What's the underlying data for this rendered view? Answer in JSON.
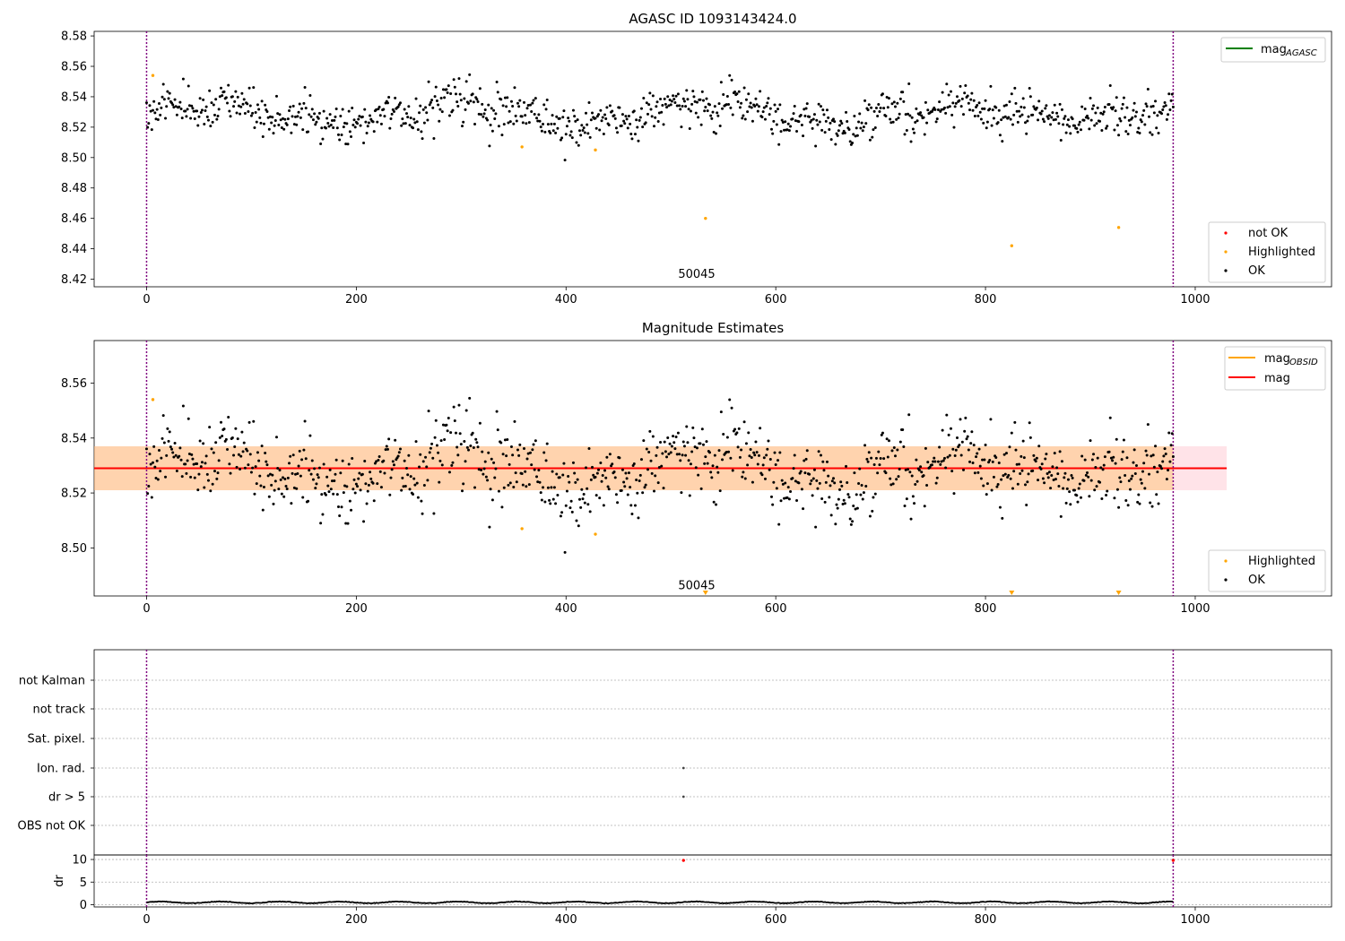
{
  "chart_data": [
    {
      "id": "top",
      "type": "scatter",
      "title": "AGASC ID 1093143424.0",
      "xlim": [
        -50,
        1130
      ],
      "ylim": [
        8.415,
        8.583
      ],
      "xticks": [
        0,
        200,
        400,
        600,
        800,
        1000
      ],
      "yticks": [
        8.42,
        8.44,
        8.46,
        8.48,
        8.5,
        8.52,
        8.54,
        8.56,
        8.58
      ],
      "vlines": [
        0,
        979
      ],
      "annotations": [
        {
          "text": "50045",
          "x": 487,
          "y": 8.421
        }
      ],
      "legend_lines": [
        {
          "label": "mag",
          "sub": "AGASC",
          "color": "#008000"
        }
      ],
      "legend_points": [
        {
          "label": "not OK",
          "color": "#ff0000"
        },
        {
          "label": "Highlighted",
          "color": "#ffa500"
        },
        {
          "label": "OK",
          "color": "#000000"
        }
      ],
      "series": [
        {
          "name": "OK",
          "color": "#000000",
          "points": "generated: 980 observations, mean 8.529, sd 0.007"
        },
        {
          "name": "Highlighted",
          "color": "#ffa500",
          "x": [
            6,
            358,
            428,
            533,
            825,
            927
          ],
          "y": [
            8.554,
            8.507,
            8.505,
            8.46,
            8.442,
            8.454
          ]
        }
      ]
    },
    {
      "id": "mid",
      "type": "scatter",
      "title": "Magnitude Estimates",
      "xlim": [
        -50,
        1130
      ],
      "ylim": [
        8.4825,
        8.5755
      ],
      "xticks": [
        0,
        200,
        400,
        600,
        800,
        1000
      ],
      "yticks": [
        8.5,
        8.52,
        8.54,
        8.56
      ],
      "vlines": [
        0,
        979
      ],
      "annotations": [
        {
          "text": "50045",
          "x": 487,
          "y": 8.4849
        }
      ],
      "bands": [
        {
          "label": "mag",
          "x": [
            -50,
            1030
          ],
          "y": [
            8.521,
            8.537
          ],
          "color": "#ffc0cb"
        },
        {
          "label": "mag OBSID",
          "x": [
            -50,
            979
          ],
          "y": [
            8.521,
            8.537
          ],
          "color": "#ffa500"
        }
      ],
      "hlines": [
        {
          "label": "mag",
          "sub": "OBSID",
          "value": 8.529,
          "x": [
            -50,
            979
          ],
          "color": "#ffa500"
        },
        {
          "label": "mag",
          "sub": "",
          "value": 8.529,
          "x": [
            -50,
            1030
          ],
          "color": "#ff0000"
        }
      ],
      "legend_points": [
        {
          "label": "Highlighted",
          "color": "#ffa500"
        },
        {
          "label": "OK",
          "color": "#000000"
        }
      ],
      "series": [
        {
          "name": "OK",
          "color": "#000000",
          "points": "same as top"
        },
        {
          "name": "Highlighted",
          "color": "#ffa500",
          "x": [
            6,
            358,
            428
          ],
          "y": [
            8.554,
            8.507,
            8.505
          ]
        },
        {
          "name": "Highlighted (off scale, below)",
          "color": "#ffa500",
          "x": [
            533,
            825,
            927
          ]
        }
      ]
    },
    {
      "id": "flags",
      "type": "scatter",
      "xlim": [
        -50,
        1130
      ],
      "categories": [
        "not Kalman",
        "not track",
        "Sat. pixel.",
        "Ion. rad.",
        "dr > 5",
        "OBS not OK"
      ],
      "points": [
        {
          "category": "Ion. rad.",
          "x": 512
        },
        {
          "category": "dr > 5",
          "x": 512
        }
      ],
      "vlines": [
        0,
        979
      ]
    },
    {
      "id": "dr",
      "type": "line",
      "ylabel": "dr",
      "xlim": [
        -50,
        1130
      ],
      "ylim": [
        -0.5,
        11
      ],
      "xticks": [
        0,
        200,
        400,
        600,
        800,
        1000
      ],
      "yticks": [
        0,
        5,
        10
      ],
      "vlines": [
        0,
        979
      ],
      "series": [
        {
          "name": "dr",
          "color": "#000000",
          "points": "generated: 980 values, 0.2-0.9"
        },
        {
          "name": "not OK",
          "color": "#ff0000",
          "x": [
            512,
            979
          ],
          "y": [
            9.8,
            9.8
          ]
        }
      ]
    }
  ]
}
